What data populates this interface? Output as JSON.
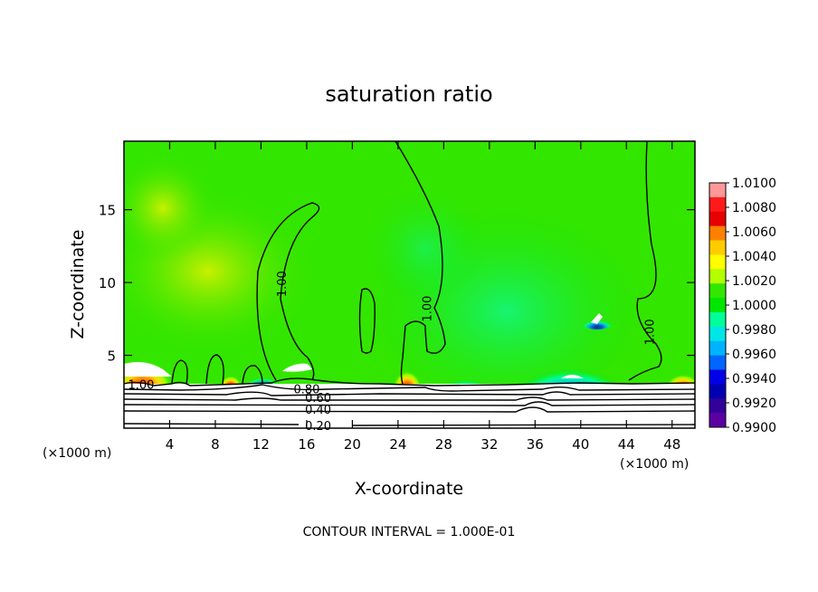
{
  "chart_data": {
    "type": "heatmap",
    "title": "saturation ratio",
    "xlabel": "X-coordinate",
    "ylabel": "Z-coordinate",
    "x_unit_left": "(×1000 m)",
    "x_unit_right": "(×1000 m)",
    "xlim": [
      0,
      50
    ],
    "ylim": [
      0,
      19.7
    ],
    "xticks": [
      4,
      8,
      12,
      16,
      20,
      24,
      28,
      32,
      36,
      40,
      44,
      48
    ],
    "yticks": [
      5,
      10,
      15
    ],
    "footer": "CONTOUR INTERVAL = 1.000E-01",
    "colorbar": {
      "labels": [
        "1.0100",
        "1.0080",
        "1.0060",
        "1.0040",
        "1.0020",
        "1.0000",
        "0.9980",
        "0.9960",
        "0.9940",
        "0.9920",
        "0.9900"
      ],
      "colors": [
        "#ff9999",
        "#ff1a1a",
        "#e60000",
        "#ff8000",
        "#ffcc00",
        "#ffff00",
        "#b3ff00",
        "#33e600",
        "#00e600",
        "#00ff99",
        "#00e6e6",
        "#00b3ff",
        "#0066ff",
        "#0000e6",
        "#0000b3",
        "#330099",
        "#5c00a3"
      ]
    },
    "contour_labels": [
      {
        "text": "1.00",
        "x": 1.5,
        "z": 3.0
      },
      {
        "text": "1.00",
        "x": 13.8,
        "z": 9.9
      },
      {
        "text": "1.00",
        "x": 26.5,
        "z": 8.2
      },
      {
        "text": "1.00",
        "x": 46.0,
        "z": 6.6
      },
      {
        "text": "0.80",
        "x": 16.0,
        "z": 2.7
      },
      {
        "text": "0.60",
        "x": 17.0,
        "z": 2.1
      },
      {
        "text": "0.40",
        "x": 17.0,
        "z": 1.3
      },
      {
        "text": "0.20",
        "x": 17.0,
        "z": 0.2
      }
    ]
  }
}
